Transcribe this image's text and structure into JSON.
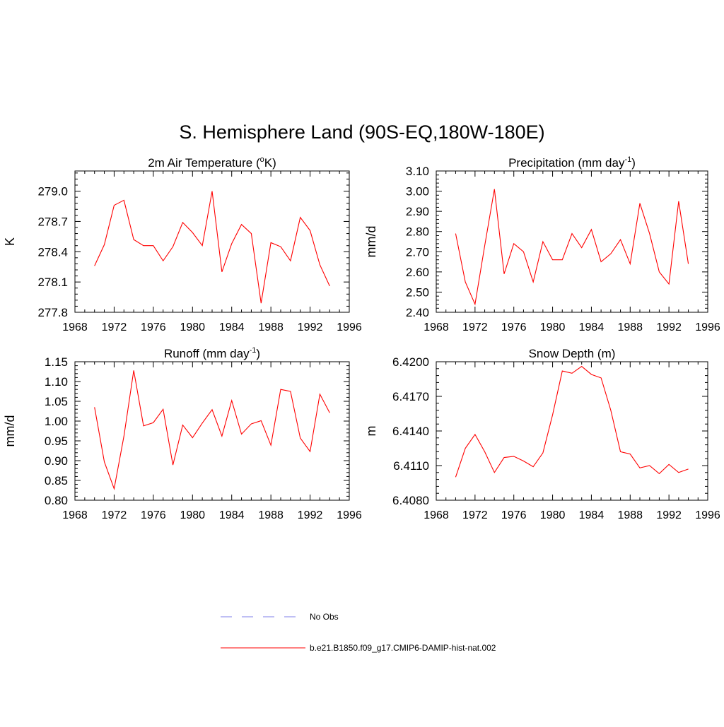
{
  "title": "S. Hemisphere Land (90S-EQ,180W-180E)",
  "colors": {
    "model": "#ff0000",
    "obs": "#9999ee",
    "axis": "#000000"
  },
  "legend": {
    "obs_label": "No Obs",
    "model_label": "b.e21.B1850.f09_g17.CMIP6-DAMIP-hist-nat.002"
  },
  "chart_data": [
    {
      "type": "line",
      "title": "2m Air Temperature (",
      "title_sup": "o",
      "title_after": "K)",
      "title_sup2": "",
      "title_after2": "",
      "ylabel": "K",
      "xlim": [
        1968,
        1996
      ],
      "xticks": [
        1968,
        1972,
        1976,
        1980,
        1984,
        1988,
        1992,
        1996
      ],
      "ylim": [
        277.8,
        279.2
      ],
      "yticks": [
        277.8,
        278.1,
        278.4,
        278.7,
        279.0
      ],
      "ytick_labels": [
        "277.8",
        "278.1",
        "278.4",
        "278.7",
        "279.0"
      ],
      "series": [
        {
          "x": [
            1970,
            1971,
            1972,
            1973,
            1974,
            1975,
            1976,
            1977,
            1978,
            1979,
            1980,
            1981,
            1982,
            1983,
            1984,
            1985,
            1986,
            1987,
            1988,
            1989,
            1990,
            1991,
            1992,
            1993,
            1994
          ],
          "y": [
            278.26,
            278.47,
            278.86,
            278.91,
            278.52,
            278.46,
            278.46,
            278.31,
            278.45,
            278.69,
            278.59,
            278.46,
            279.0,
            278.2,
            278.48,
            278.67,
            278.58,
            277.89,
            278.49,
            278.45,
            278.31,
            278.74,
            278.61,
            278.27,
            278.06
          ]
        }
      ]
    },
    {
      "type": "line",
      "title": "Precipitation (mm day",
      "title_sup": "-1",
      "title_after": ")",
      "title_sup2": "",
      "title_after2": "",
      "ylabel": "mm/d",
      "xlim": [
        1968,
        1996
      ],
      "xticks": [
        1968,
        1972,
        1976,
        1980,
        1984,
        1988,
        1992,
        1996
      ],
      "ylim": [
        2.4,
        3.1
      ],
      "yticks": [
        2.4,
        2.5,
        2.6,
        2.7,
        2.8,
        2.9,
        3.0,
        3.1
      ],
      "ytick_labels": [
        "2.40",
        "2.50",
        "2.60",
        "2.70",
        "2.80",
        "2.90",
        "3.00",
        "3.10"
      ],
      "series": [
        {
          "x": [
            1970,
            1971,
            1972,
            1973,
            1974,
            1975,
            1976,
            1977,
            1978,
            1979,
            1980,
            1981,
            1982,
            1983,
            1984,
            1985,
            1986,
            1987,
            1988,
            1989,
            1990,
            1991,
            1992,
            1993,
            1994
          ],
          "y": [
            2.79,
            2.55,
            2.44,
            2.73,
            3.01,
            2.59,
            2.74,
            2.7,
            2.55,
            2.75,
            2.66,
            2.66,
            2.79,
            2.72,
            2.81,
            2.65,
            2.69,
            2.76,
            2.64,
            2.94,
            2.79,
            2.6,
            2.54,
            2.95,
            2.64
          ]
        }
      ]
    },
    {
      "type": "line",
      "title": "Runoff (mm day",
      "title_sup": "-1",
      "title_after": ")",
      "title_sup2": "",
      "title_after2": "",
      "ylabel": "mm/d",
      "xlim": [
        1968,
        1996
      ],
      "xticks": [
        1968,
        1972,
        1976,
        1980,
        1984,
        1988,
        1992,
        1996
      ],
      "ylim": [
        0.8,
        1.15
      ],
      "yticks": [
        0.8,
        0.85,
        0.9,
        0.95,
        1.0,
        1.05,
        1.1,
        1.15
      ],
      "ytick_labels": [
        "0.80",
        "0.85",
        "0.90",
        "0.95",
        "1.00",
        "1.05",
        "1.10",
        "1.15"
      ],
      "series": [
        {
          "x": [
            1970,
            1971,
            1972,
            1973,
            1974,
            1975,
            1976,
            1977,
            1978,
            1979,
            1980,
            1981,
            1982,
            1983,
            1984,
            1985,
            1986,
            1987,
            1988,
            1989,
            1990,
            1991,
            1992,
            1993,
            1994
          ],
          "y": [
            1.035,
            0.897,
            0.829,
            0.962,
            1.128,
            0.988,
            0.996,
            1.03,
            0.889,
            0.99,
            0.958,
            0.995,
            1.029,
            0.962,
            1.052,
            0.967,
            0.993,
            1.001,
            0.939,
            1.08,
            1.075,
            0.957,
            0.923,
            1.068,
            1.021
          ]
        }
      ]
    },
    {
      "type": "line",
      "title": "Snow Depth (m)",
      "title_sup": "",
      "title_after": "",
      "title_sup2": "",
      "title_after2": "",
      "ylabel": "m",
      "xlim": [
        1968,
        1996
      ],
      "xticks": [
        1968,
        1972,
        1976,
        1980,
        1984,
        1988,
        1992,
        1996
      ],
      "ylim": [
        6.408,
        6.42
      ],
      "yticks": [
        6.408,
        6.411,
        6.414,
        6.417,
        6.42
      ],
      "ytick_labels": [
        "6.4080",
        "6.4110",
        "6.4140",
        "6.4170",
        "6.4200"
      ],
      "series": [
        {
          "x": [
            1970,
            1971,
            1972,
            1973,
            1974,
            1975,
            1976,
            1977,
            1978,
            1979,
            1980,
            1981,
            1982,
            1983,
            1984,
            1985,
            1986,
            1987,
            1988,
            1989,
            1990,
            1991,
            1992,
            1993,
            1994
          ],
          "y": [
            6.41,
            6.4125,
            6.4137,
            6.4122,
            6.4104,
            6.4117,
            6.4118,
            6.4114,
            6.4109,
            6.4121,
            6.4154,
            6.4192,
            6.419,
            6.4196,
            6.4189,
            6.4186,
            6.4158,
            6.4122,
            6.412,
            6.4108,
            6.411,
            6.4103,
            6.4111,
            6.4104,
            6.4107
          ]
        }
      ]
    }
  ]
}
